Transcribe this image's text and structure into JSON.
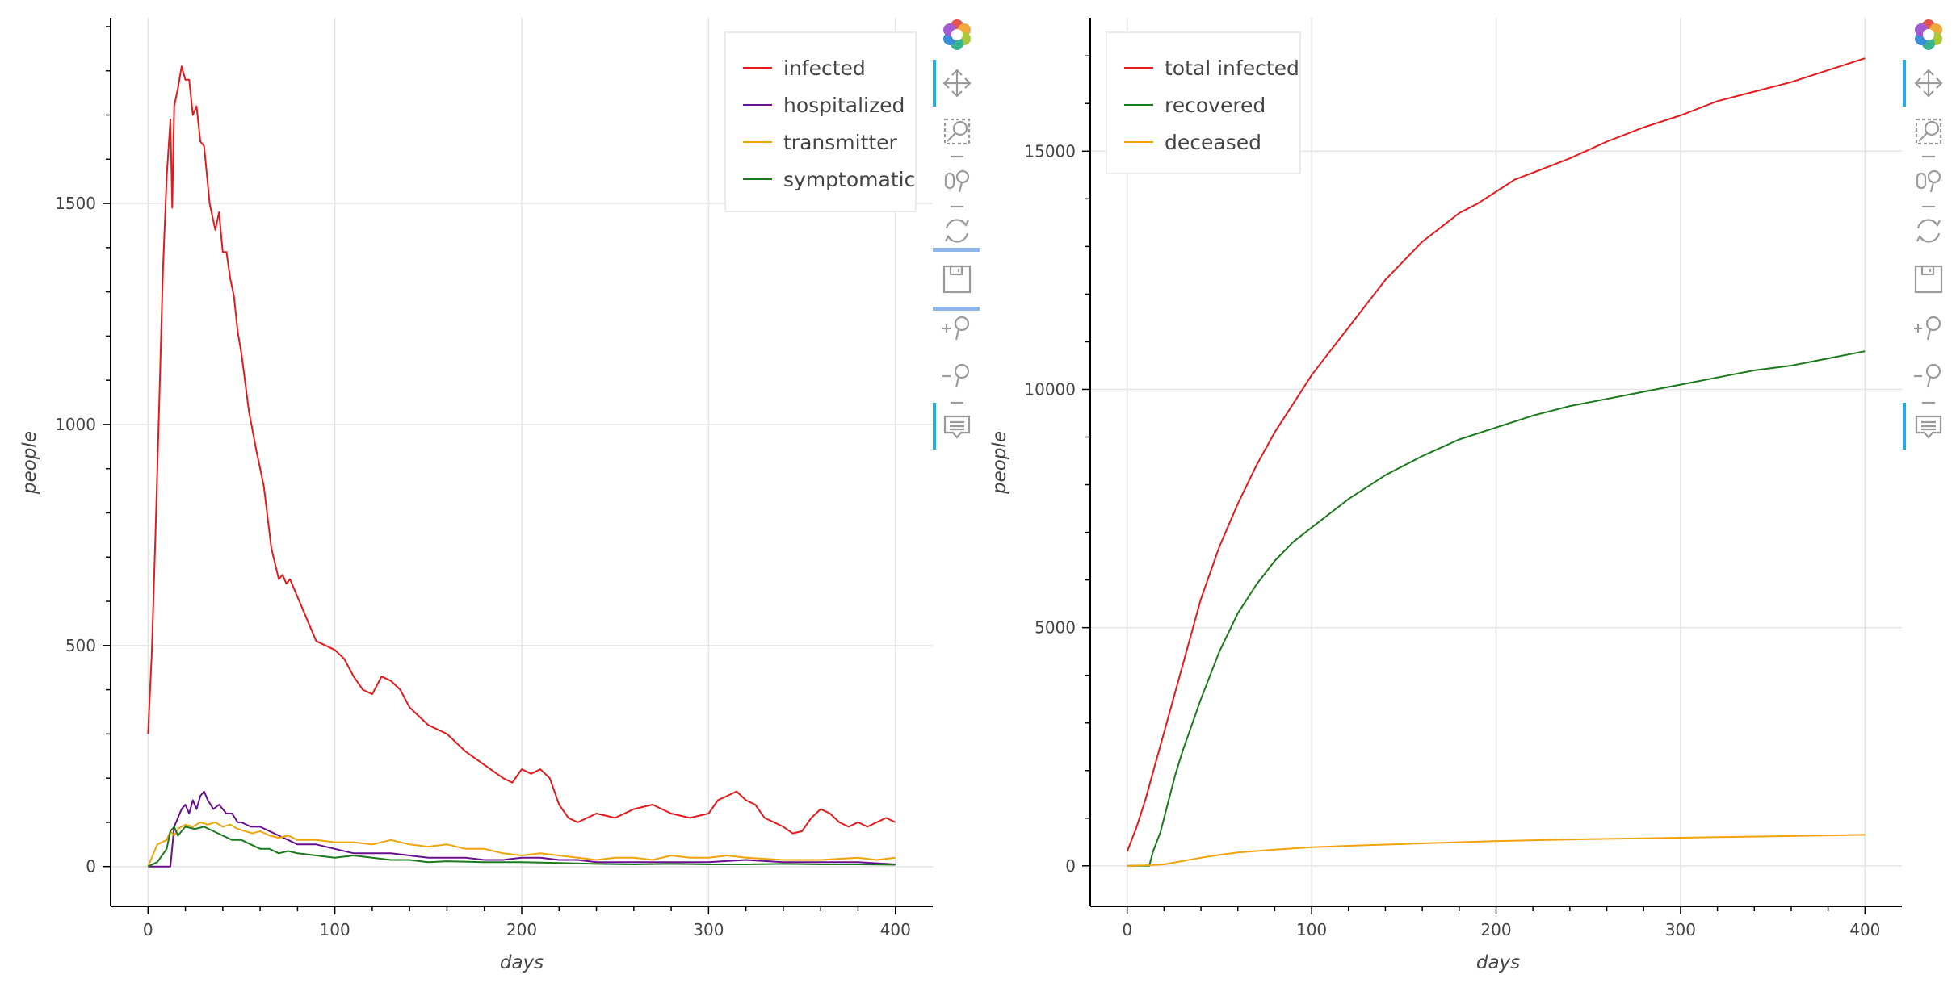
{
  "chart_data": [
    {
      "type": "line",
      "title": "",
      "xlabel": "days",
      "ylabel": "people",
      "xlim": [
        -20,
        420
      ],
      "ylim": [
        -90,
        1920
      ],
      "xticks": [
        0,
        100,
        200,
        300,
        400
      ],
      "yticks": [
        0,
        500,
        1000,
        1500
      ],
      "grid": true,
      "legend_position": "top-right",
      "series": [
        {
          "name": "infected",
          "color": "#e41a1c",
          "x": [
            0,
            2,
            4,
            6,
            8,
            10,
            12,
            13,
            14,
            16,
            18,
            20,
            22,
            24,
            26,
            28,
            30,
            33,
            36,
            38,
            40,
            42,
            44,
            46,
            48,
            50,
            54,
            58,
            62,
            66,
            70,
            72,
            74,
            76,
            80,
            85,
            90,
            95,
            100,
            105,
            110,
            115,
            120,
            125,
            130,
            135,
            140,
            145,
            150,
            155,
            160,
            170,
            180,
            190,
            195,
            200,
            205,
            210,
            215,
            220,
            225,
            230,
            235,
            240,
            250,
            260,
            270,
            280,
            290,
            300,
            305,
            310,
            315,
            320,
            325,
            330,
            340,
            345,
            350,
            355,
            360,
            365,
            370,
            375,
            380,
            385,
            390,
            395,
            400
          ],
          "y": [
            300,
            480,
            750,
            1050,
            1350,
            1560,
            1690,
            1490,
            1720,
            1760,
            1810,
            1780,
            1780,
            1700,
            1720,
            1640,
            1630,
            1500,
            1440,
            1480,
            1390,
            1390,
            1330,
            1290,
            1210,
            1160,
            1030,
            940,
            860,
            720,
            650,
            660,
            640,
            650,
            610,
            560,
            510,
            500,
            490,
            470,
            430,
            400,
            390,
            430,
            420,
            400,
            360,
            340,
            320,
            310,
            300,
            260,
            230,
            200,
            190,
            220,
            210,
            220,
            200,
            140,
            110,
            100,
            110,
            120,
            110,
            130,
            140,
            120,
            110,
            120,
            150,
            160,
            170,
            150,
            140,
            110,
            90,
            75,
            80,
            110,
            130,
            120,
            100,
            90,
            100,
            90,
            100,
            110,
            100
          ]
        },
        {
          "name": "hospitalized",
          "color": "#6a0f8e",
          "x": [
            0,
            6,
            10,
            12,
            14,
            18,
            20,
            22,
            24,
            26,
            28,
            30,
            32,
            35,
            38,
            40,
            42,
            45,
            48,
            50,
            55,
            60,
            65,
            70,
            75,
            80,
            90,
            100,
            110,
            120,
            130,
            140,
            150,
            160,
            170,
            180,
            190,
            200,
            210,
            220,
            230,
            240,
            260,
            280,
            300,
            320,
            340,
            360,
            380,
            400
          ],
          "y": [
            0,
            0,
            0,
            0,
            90,
            130,
            140,
            120,
            150,
            130,
            160,
            170,
            150,
            130,
            140,
            130,
            120,
            120,
            100,
            100,
            90,
            90,
            80,
            70,
            60,
            50,
            50,
            40,
            30,
            30,
            30,
            25,
            20,
            20,
            20,
            15,
            15,
            20,
            20,
            15,
            15,
            10,
            10,
            10,
            10,
            15,
            10,
            10,
            10,
            5
          ]
        },
        {
          "name": "transmitter",
          "color": "#f0a30a",
          "x": [
            0,
            5,
            10,
            12,
            14,
            16,
            18,
            20,
            24,
            28,
            32,
            36,
            40,
            44,
            48,
            52,
            56,
            60,
            65,
            70,
            75,
            80,
            90,
            100,
            110,
            120,
            130,
            140,
            150,
            160,
            170,
            180,
            190,
            200,
            210,
            220,
            230,
            240,
            250,
            260,
            270,
            280,
            290,
            300,
            310,
            320,
            340,
            360,
            380,
            390,
            400
          ],
          "y": [
            0,
            50,
            60,
            80,
            70,
            85,
            90,
            95,
            90,
            100,
            95,
            100,
            90,
            95,
            85,
            80,
            75,
            80,
            70,
            65,
            70,
            60,
            60,
            55,
            55,
            50,
            60,
            50,
            45,
            50,
            40,
            40,
            30,
            25,
            30,
            25,
            20,
            15,
            20,
            20,
            15,
            25,
            20,
            20,
            25,
            20,
            15,
            15,
            20,
            15,
            20
          ]
        },
        {
          "name": "symptomatic",
          "color": "#1b7a1b",
          "x": [
            0,
            5,
            10,
            12,
            14,
            16,
            18,
            20,
            25,
            30,
            35,
            40,
            45,
            50,
            55,
            60,
            65,
            70,
            75,
            80,
            90,
            100,
            110,
            120,
            130,
            140,
            150,
            160,
            180,
            200,
            220,
            240,
            260,
            280,
            300,
            320,
            340,
            360,
            380,
            400
          ],
          "y": [
            0,
            10,
            40,
            80,
            90,
            70,
            80,
            90,
            85,
            90,
            80,
            70,
            60,
            60,
            50,
            40,
            40,
            30,
            35,
            30,
            25,
            20,
            25,
            20,
            15,
            15,
            10,
            12,
            10,
            10,
            8,
            6,
            5,
            6,
            5,
            5,
            6,
            5,
            5,
            4
          ]
        }
      ]
    },
    {
      "type": "line",
      "title": "",
      "xlabel": "days",
      "ylabel": "people",
      "xlim": [
        -20,
        420
      ],
      "ylim": [
        -850,
        17800
      ],
      "xticks": [
        0,
        100,
        200,
        300,
        400
      ],
      "yticks": [
        0,
        5000,
        10000,
        15000
      ],
      "grid": true,
      "legend_position": "top-left",
      "series": [
        {
          "name": "total infected",
          "color": "#e41a1c",
          "x": [
            0,
            5,
            10,
            15,
            20,
            25,
            30,
            40,
            50,
            60,
            70,
            80,
            90,
            100,
            110,
            120,
            130,
            140,
            150,
            160,
            170,
            180,
            190,
            200,
            210,
            220,
            240,
            260,
            280,
            300,
            320,
            340,
            360,
            380,
            400
          ],
          "y": [
            300,
            800,
            1400,
            2100,
            2800,
            3500,
            4200,
            5600,
            6700,
            7600,
            8400,
            9100,
            9700,
            10300,
            10800,
            11300,
            11800,
            12300,
            12700,
            13100,
            13400,
            13700,
            13900,
            14150,
            14400,
            14550,
            14850,
            15200,
            15500,
            15750,
            16050,
            16250,
            16450,
            16700,
            16950
          ]
        },
        {
          "name": "recovered",
          "color": "#1b7a1b",
          "x": [
            0,
            5,
            10,
            12,
            14,
            18,
            22,
            26,
            30,
            40,
            50,
            60,
            70,
            80,
            90,
            100,
            120,
            140,
            160,
            180,
            200,
            220,
            240,
            260,
            280,
            300,
            320,
            340,
            360,
            380,
            400
          ],
          "y": [
            0,
            0,
            0,
            0,
            300,
            700,
            1300,
            1900,
            2400,
            3500,
            4500,
            5300,
            5900,
            6400,
            6800,
            7100,
            7700,
            8200,
            8600,
            8950,
            9200,
            9450,
            9650,
            9800,
            9950,
            10100,
            10250,
            10400,
            10500,
            10650,
            10800
          ]
        },
        {
          "name": "deceased",
          "color": "#f0a30a",
          "x": [
            0,
            10,
            20,
            30,
            40,
            50,
            60,
            80,
            100,
            120,
            150,
            200,
            250,
            300,
            350,
            400
          ],
          "y": [
            0,
            10,
            30,
            100,
            170,
            230,
            280,
            340,
            390,
            420,
            460,
            520,
            560,
            590,
            620,
            650
          ]
        }
      ]
    }
  ],
  "toolbar": {
    "logo_icon": "bokeh-logo-icon",
    "tools": [
      "pan-icon",
      "box-zoom-icon",
      "wheel-zoom-icon",
      "reset-icon",
      "save-icon",
      "zoom-in-icon",
      "zoom-out-icon",
      "hover-icon"
    ],
    "accent_color": "#26aae1"
  }
}
